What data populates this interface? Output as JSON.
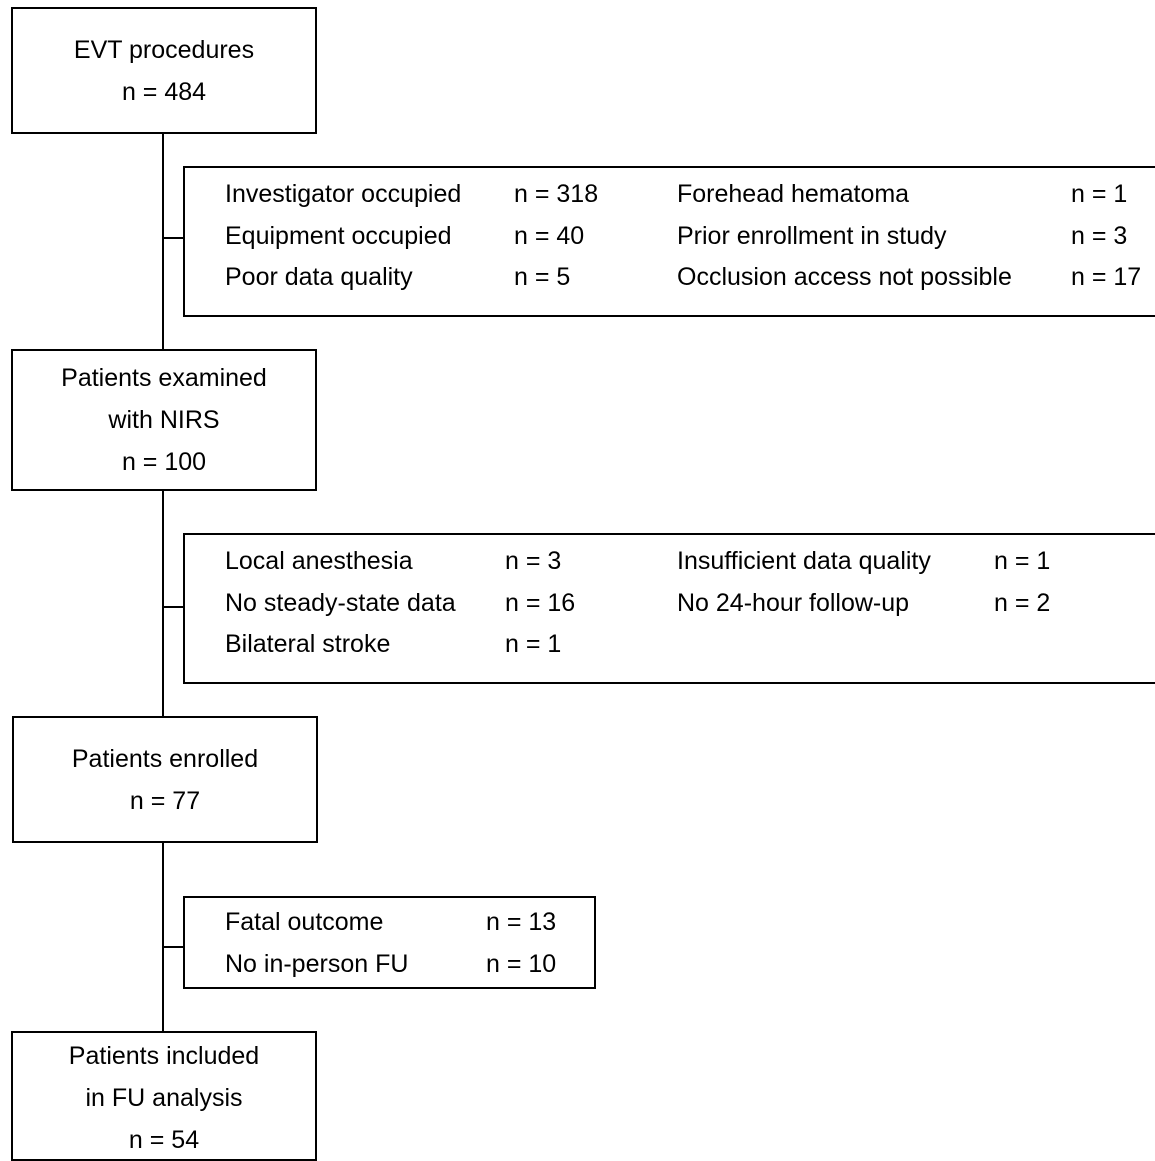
{
  "stages": [
    {
      "lines": [
        "EVT procedures",
        "n = 484"
      ]
    },
    {
      "lines": [
        "Patients examined",
        "with NIRS",
        "n = 100"
      ]
    },
    {
      "lines": [
        "Patients enrolled",
        "n = 77"
      ]
    },
    {
      "lines": [
        "Patients included",
        "in FU analysis",
        "n = 54"
      ]
    }
  ],
  "exclusions": [
    {
      "columns": [
        {
          "items": [
            {
              "label": "Investigator occupied",
              "count": "n = 318"
            },
            {
              "label": "Equipment occupied",
              "count": "n = 40"
            },
            {
              "label": "Poor data quality",
              "count": "n = 5"
            }
          ]
        },
        {
          "items": [
            {
              "label": "Forehead hematoma",
              "count": "n = 1"
            },
            {
              "label": "Prior enrollment in study",
              "count": "n = 3"
            },
            {
              "label": "Occlusion access not possible",
              "count": "n = 17"
            }
          ]
        }
      ]
    },
    {
      "columns": [
        {
          "items": [
            {
              "label": "Local anesthesia",
              "count": "n = 3"
            },
            {
              "label": "No steady-state data",
              "count": "n = 16"
            },
            {
              "label": "Bilateral stroke",
              "count": "n = 1"
            }
          ]
        },
        {
          "items": [
            {
              "label": "Insufficient data quality",
              "count": "n = 1"
            },
            {
              "label": "No 24-hour follow-up",
              "count": "n = 2"
            }
          ]
        }
      ]
    },
    {
      "columns": [
        {
          "items": [
            {
              "label": "Fatal outcome",
              "count": "n = 13"
            },
            {
              "label": "No in-person FU",
              "count": "n = 10"
            }
          ]
        }
      ]
    }
  ]
}
